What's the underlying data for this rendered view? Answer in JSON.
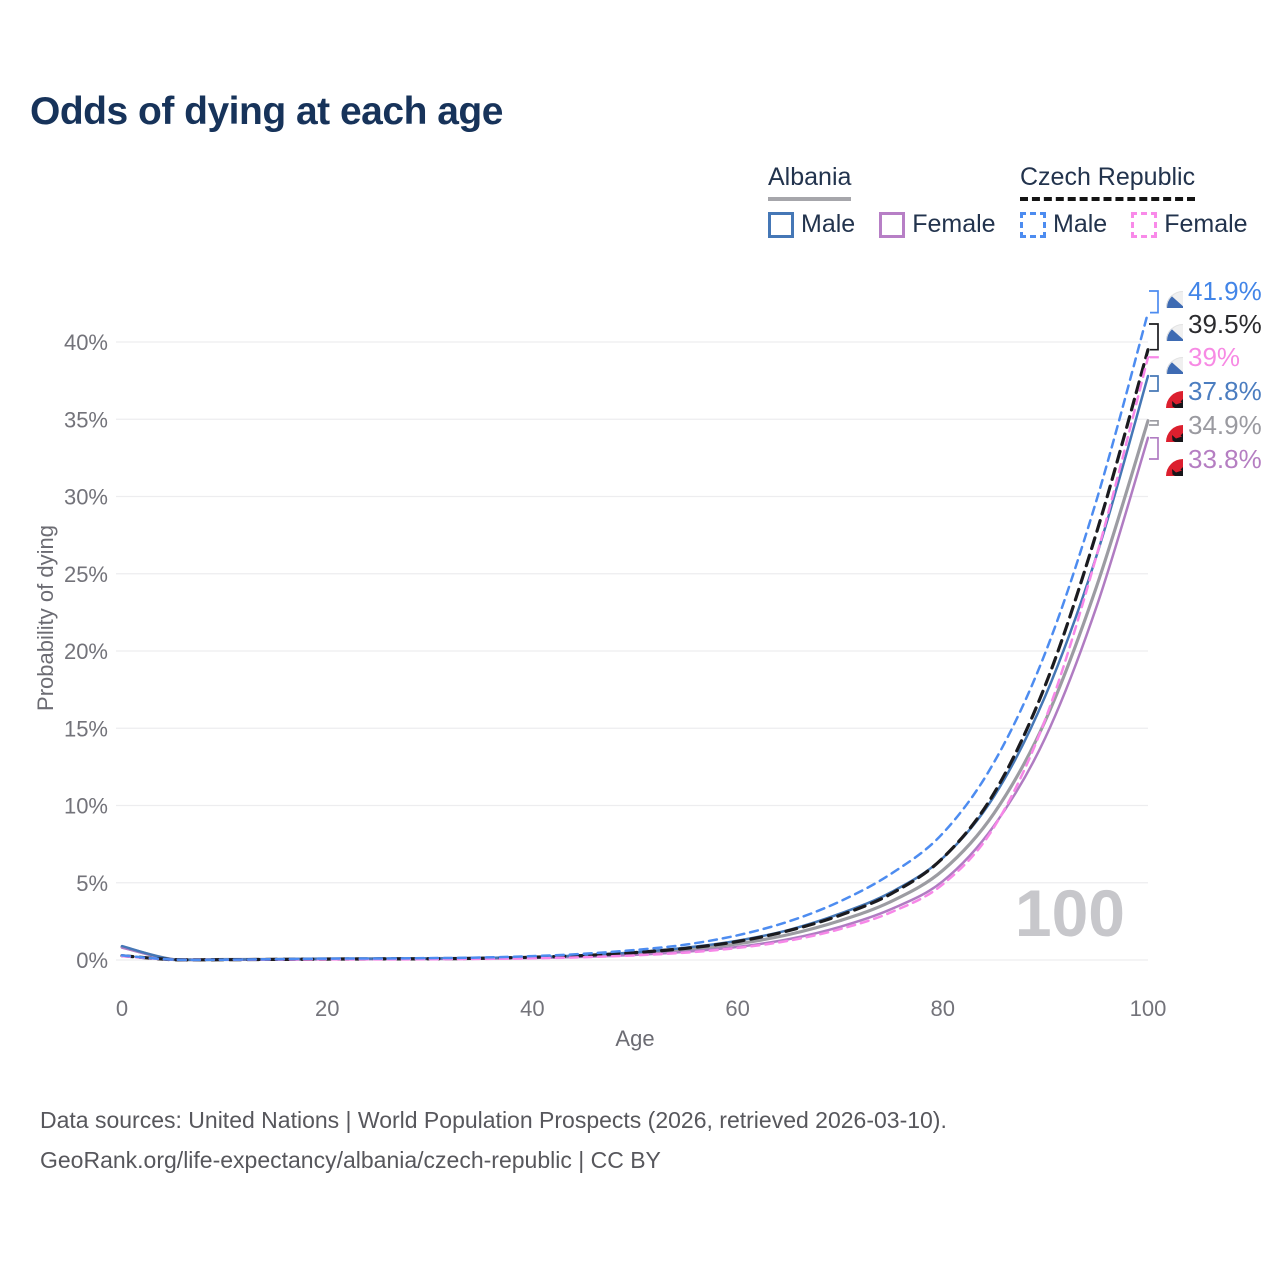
{
  "title": "Odds of dying at each age",
  "watermark": "100",
  "legend": {
    "groups": [
      {
        "name": "Albania",
        "line_style": "solid",
        "underline_color": "#a6a6ab",
        "items": [
          {
            "label": "Male",
            "color": "#4577b6"
          },
          {
            "label": "Female",
            "color": "#b77fc6"
          }
        ]
      },
      {
        "name": "Czech Republic",
        "line_style": "dashed",
        "underline_color": "#141414",
        "items": [
          {
            "label": "Male",
            "color": "#4d8cf0"
          },
          {
            "label": "Female",
            "color": "#f98ae9"
          }
        ]
      }
    ]
  },
  "footer": {
    "line1": "Data sources: United Nations | World Population Prospects (2026, retrieved 2026-03-10).",
    "line2": "GeoRank.org/life-expectancy/albania/czech-republic | CC BY"
  },
  "chart_data": {
    "type": "line",
    "title": "Odds of dying at each age",
    "xlabel": "Age",
    "ylabel": "Probability of dying",
    "xlim": [
      0,
      100
    ],
    "ylim": [
      0,
      43
    ],
    "xticks": [
      0,
      20,
      40,
      60,
      80,
      100
    ],
    "yticks": [
      0,
      5,
      10,
      15,
      20,
      25,
      30,
      35,
      40
    ],
    "grid": "horizontal",
    "legend_position": "top-right",
    "watermark_age": "100",
    "x": [
      0,
      5,
      10,
      15,
      20,
      25,
      30,
      35,
      40,
      45,
      50,
      55,
      60,
      65,
      70,
      75,
      80,
      85,
      90,
      95,
      100
    ],
    "series": [
      {
        "name": "Czech Republic Male",
        "country": "Czech Republic",
        "sex": "Male",
        "style": "dashed",
        "color": "#4d8cf0",
        "flag": "cz",
        "end_label": "41.9%",
        "label_color": "#4285e8",
        "values": [
          0.3,
          0.02,
          0.02,
          0.05,
          0.09,
          0.1,
          0.12,
          0.16,
          0.25,
          0.4,
          0.65,
          1.0,
          1.6,
          2.5,
          3.8,
          5.6,
          8.2,
          12.8,
          19.9,
          29.8,
          41.9
        ]
      },
      {
        "name": "Czech Republic Total",
        "country": "Czech Republic",
        "sex": "Total",
        "style": "dashed",
        "color": "#1b1b1f",
        "flag": "cz",
        "end_label": "39.5%",
        "label_color": "#2b2b2e",
        "values": [
          0.28,
          0.02,
          0.02,
          0.04,
          0.06,
          0.07,
          0.08,
          0.11,
          0.18,
          0.29,
          0.48,
          0.76,
          1.2,
          1.9,
          2.9,
          4.3,
          6.6,
          10.8,
          17.8,
          27.7,
          39.5
        ]
      },
      {
        "name": "Czech Republic Female",
        "country": "Czech Republic",
        "sex": "Female",
        "style": "dashed",
        "color": "#f787e8",
        "flag": "cz",
        "end_label": "39%",
        "label_color": "#f78ae4",
        "values": [
          0.25,
          0.02,
          0.02,
          0.03,
          0.04,
          0.04,
          0.05,
          0.07,
          0.11,
          0.18,
          0.3,
          0.48,
          0.78,
          1.25,
          2.0,
          3.1,
          4.9,
          8.6,
          15.6,
          26.2,
          39.0
        ]
      },
      {
        "name": "Albania Male",
        "country": "Albania",
        "sex": "Male",
        "style": "solid",
        "color": "#4577b6",
        "flag": "al",
        "end_label": "37.8%",
        "label_color": "#4b7dc0",
        "values": [
          0.9,
          0.03,
          0.03,
          0.05,
          0.08,
          0.09,
          0.1,
          0.13,
          0.19,
          0.3,
          0.5,
          0.8,
          1.25,
          1.95,
          3.0,
          4.4,
          6.6,
          10.6,
          17.1,
          26.2,
          37.8
        ]
      },
      {
        "name": "Albania Total",
        "country": "Albania",
        "sex": "Total",
        "style": "solid",
        "color": "#9c9ca2",
        "flag": "al",
        "end_label": "34.9%",
        "label_color": "#9a9aa0",
        "values": [
          0.85,
          0.03,
          0.03,
          0.04,
          0.07,
          0.08,
          0.09,
          0.11,
          0.16,
          0.25,
          0.42,
          0.67,
          1.05,
          1.65,
          2.55,
          3.8,
          5.8,
          9.5,
          15.5,
          24.2,
          34.9
        ]
      },
      {
        "name": "Albania Female",
        "country": "Albania",
        "sex": "Female",
        "style": "solid",
        "color": "#b07cc2",
        "flag": "al",
        "end_label": "33.8%",
        "label_color": "#b57ec2",
        "values": [
          0.8,
          0.03,
          0.02,
          0.03,
          0.05,
          0.06,
          0.07,
          0.09,
          0.13,
          0.2,
          0.33,
          0.54,
          0.85,
          1.35,
          2.15,
          3.3,
          5.1,
          8.7,
          14.4,
          22.9,
          33.8
        ]
      }
    ]
  }
}
